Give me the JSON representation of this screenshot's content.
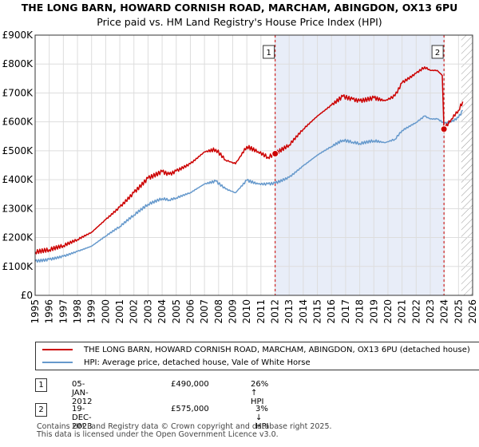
{
  "header": {
    "title": "THE LONG BARN, HOWARD CORNISH ROAD, MARCHAM, ABINGDON, OX13 6PU",
    "subtitle": "Price paid vs. HM Land Registry's House Price Index (HPI)"
  },
  "chart_data": {
    "type": "line",
    "title": "THE LONG BARN, HOWARD CORNISH ROAD, MARCHAM, ABINGDON, OX13 6PU",
    "subtitle": "Price paid vs. HM Land Registry's House Price Index (HPI)",
    "xlabel": "",
    "ylabel": "",
    "xlim": [
      1995,
      2026
    ],
    "ylim": [
      0,
      900000
    ],
    "x_ticks": [
      "1995",
      "1996",
      "1997",
      "1998",
      "1999",
      "2000",
      "2001",
      "2002",
      "2003",
      "2004",
      "2005",
      "2006",
      "2007",
      "2008",
      "2009",
      "2010",
      "2011",
      "2012",
      "2013",
      "2014",
      "2015",
      "2016",
      "2017",
      "2018",
      "2019",
      "2020",
      "2021",
      "2022",
      "2023",
      "2024",
      "2025",
      "2026"
    ],
    "y_ticks": [
      "£0",
      "£100K",
      "£200K",
      "£300K",
      "£400K",
      "£500K",
      "£600K",
      "£700K",
      "£800K",
      "£900K"
    ],
    "grid": true,
    "shaded_range": [
      2012.01,
      2023.97
    ],
    "future_hatch_from": 2025.2,
    "series": [
      {
        "name": "THE LONG BARN, HOWARD CORNISH ROAD, MARCHAM, ABINGDON, OX13 6PU (detached house)",
        "color": "#cc0000",
        "x": [
          1995,
          1996,
          1997,
          1998,
          1999,
          2000,
          2001,
          2002,
          2003,
          2004,
          2004.5,
          2005,
          2006,
          2007,
          2007.8,
          2008.5,
          2009.2,
          2010,
          2010.8,
          2011.5,
          2012.01,
          2013,
          2014,
          2015,
          2016,
          2016.8,
          2017.5,
          2018,
          2019,
          2019.8,
          2020.5,
          2021,
          2022,
          2022.6,
          2023,
          2023.5,
          2023.85,
          2023.97,
          2024.5,
          2025,
          2025.3
        ],
        "y": [
          150000,
          158000,
          172000,
          193000,
          218000,
          262000,
          305000,
          355000,
          405000,
          428000,
          418000,
          430000,
          455000,
          496000,
          505000,
          468000,
          455000,
          515000,
          497000,
          478000,
          490000,
          520000,
          575000,
          620000,
          658000,
          688000,
          678000,
          672000,
          683000,
          673000,
          690000,
          735000,
          768000,
          790000,
          778000,
          778000,
          760000,
          575000,
          610000,
          640000,
          670000
        ]
      },
      {
        "name": "HPI: Average price, detached house, Vale of White Horse",
        "color": "#6699cc",
        "x": [
          1995,
          1996,
          1997,
          1998,
          1999,
          2000,
          2001,
          2002,
          2003,
          2004,
          2004.5,
          2005,
          2006,
          2007,
          2007.8,
          2008.5,
          2009.2,
          2010,
          2010.8,
          2011.5,
          2012.01,
          2013,
          2014,
          2015,
          2016,
          2016.8,
          2017.5,
          2018,
          2019,
          2019.8,
          2020.5,
          2021,
          2022,
          2022.6,
          2023,
          2023.5,
          2024,
          2024.5,
          2025,
          2025.3
        ],
        "y": [
          118000,
          124000,
          135000,
          152000,
          170000,
          205000,
          238000,
          278000,
          315000,
          335000,
          330000,
          337000,
          355000,
          385000,
          395000,
          368000,
          355000,
          398000,
          385000,
          385000,
          388000,
          408000,
          448000,
          485000,
          515000,
          537000,
          530000,
          525000,
          535000,
          528000,
          540000,
          570000,
          598000,
          620000,
          610000,
          610000,
          595000,
          600000,
          615000,
          640000
        ]
      }
    ],
    "annotations": [
      {
        "label": "1",
        "x": 2012.01,
        "y": 490000
      },
      {
        "label": "2",
        "x": 2023.97,
        "y": 575000
      }
    ]
  },
  "legend": {
    "entries": [
      {
        "label": "THE LONG BARN, HOWARD CORNISH ROAD, MARCHAM, ABINGDON, OX13 6PU (detached house)",
        "color": "#cc0000"
      },
      {
        "label": "HPI: Average price, detached house, Vale of White Horse",
        "color": "#6699cc"
      }
    ]
  },
  "sales": [
    {
      "marker": "1",
      "date": "05-JAN-2012",
      "price": "£490,000",
      "hpi": "26% ↑ HPI"
    },
    {
      "marker": "2",
      "date": "19-DEC-2023",
      "price": "£575,000",
      "hpi": "3% ↓ HPI"
    }
  ],
  "footer": {
    "line1": "Contains HM Land Registry data © Crown copyright and database right 2025.",
    "line2": "This data is licensed under the Open Government Licence v3.0."
  }
}
